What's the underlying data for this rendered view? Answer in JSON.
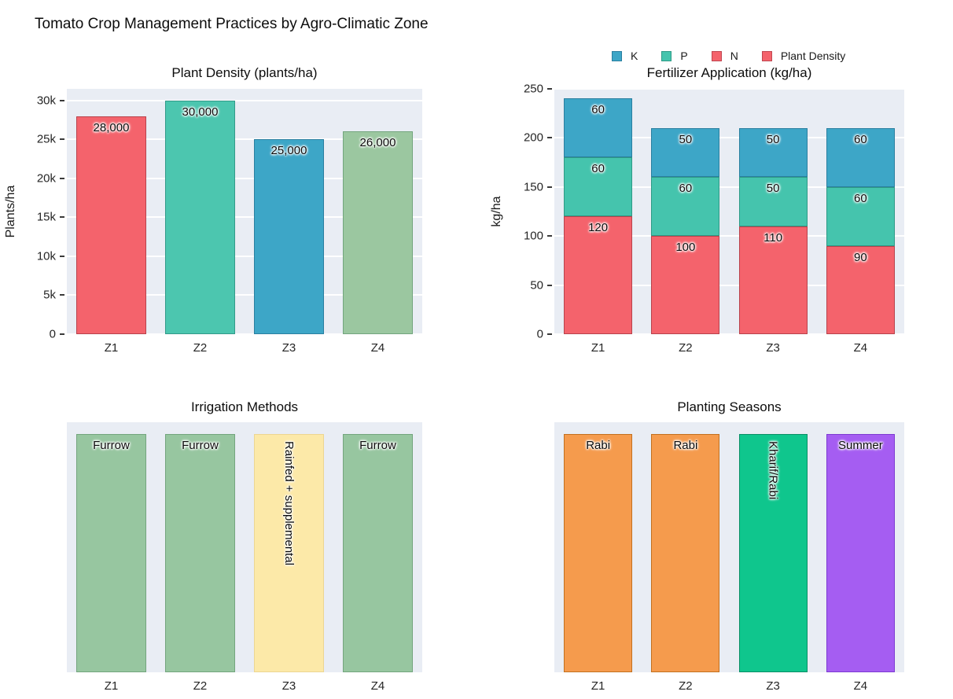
{
  "page": {
    "title": "Tomato Crop Management Practices by Agro-Climatic Zone"
  },
  "legend": {
    "position": "top-right",
    "items": [
      {
        "label": "K",
        "color": "#3da6c7",
        "border": "#2a7fa0"
      },
      {
        "label": "P",
        "color": "#45c4ad",
        "border": "#2e9a86"
      },
      {
        "label": "N",
        "color": "#f4636c",
        "border": "#c04650"
      },
      {
        "label": "Plant Density",
        "color": "#f4636c",
        "border": "#c04650"
      }
    ]
  },
  "chart_data": [
    {
      "type": "bar",
      "title": "Plant Density (plants/ha)",
      "xlabel": "",
      "ylabel": "Plants/ha",
      "categories": [
        "Z1",
        "Z2",
        "Z3",
        "Z4"
      ],
      "values": [
        28000,
        30000,
        25000,
        26000
      ],
      "bar_labels": [
        "28,000",
        "30,000",
        "25,000",
        "26,000"
      ],
      "label_rotated": [
        false,
        false,
        false,
        false
      ],
      "bar_colors": [
        "#f4636c",
        "#4cc6af",
        "#3da6c7",
        "#9bc7a0"
      ],
      "bar_borders": [
        "#b8434c",
        "#339a89",
        "#2a7fa0",
        "#73a57e"
      ],
      "ylim": [
        0,
        31500
      ],
      "grid": true,
      "yticks": [
        {
          "value": 0,
          "label": "0"
        },
        {
          "value": 5000,
          "label": "5k"
        },
        {
          "value": 10000,
          "label": "10k"
        },
        {
          "value": 15000,
          "label": "15k"
        },
        {
          "value": 20000,
          "label": "20k"
        },
        {
          "value": 25000,
          "label": "25k"
        },
        {
          "value": 30000,
          "label": "30k"
        }
      ]
    },
    {
      "type": "bar-stacked",
      "title": "Fertilizer Application (kg/ha)",
      "xlabel": "",
      "ylabel": "kg/ha",
      "categories": [
        "Z1",
        "Z2",
        "Z3",
        "Z4"
      ],
      "series": [
        {
          "name": "N",
          "color": "#f4636c",
          "border": "#b8434c",
          "values": [
            120,
            100,
            110,
            90
          ]
        },
        {
          "name": "P",
          "color": "#45c4ad",
          "border": "#2e9a86",
          "values": [
            60,
            60,
            50,
            60
          ]
        },
        {
          "name": "K",
          "color": "#3da6c7",
          "border": "#2a7fa0",
          "values": [
            60,
            50,
            50,
            60
          ]
        }
      ],
      "totals": [
        240,
        210,
        210,
        210
      ],
      "ylim": [
        0,
        250
      ],
      "grid": true,
      "yticks": [
        {
          "value": 0,
          "label": "0"
        },
        {
          "value": 50,
          "label": "50"
        },
        {
          "value": 100,
          "label": "100"
        },
        {
          "value": 150,
          "label": "150"
        },
        {
          "value": 200,
          "label": "200"
        },
        {
          "value": 250,
          "label": "250"
        }
      ]
    },
    {
      "type": "bar",
      "title": "Irrigation Methods",
      "xlabel": "",
      "ylabel": "",
      "categories": [
        "Z1",
        "Z2",
        "Z3",
        "Z4"
      ],
      "values": [
        1,
        1,
        1,
        1
      ],
      "bar_labels": [
        "Furrow",
        "Furrow",
        "Rainfed + supplemental",
        "Furrow"
      ],
      "label_rotated": [
        false,
        false,
        true,
        false
      ],
      "bar_colors": [
        "#97c6a0",
        "#97c6a0",
        "#fce9a8",
        "#97c6a0"
      ],
      "bar_borders": [
        "#74a57e",
        "#74a57e",
        "#ecd692",
        "#74a57e"
      ],
      "ylim": [
        0,
        1.048
      ],
      "grid": false,
      "yticks": []
    },
    {
      "type": "bar",
      "title": "Planting Seasons",
      "xlabel": "",
      "ylabel": "",
      "categories": [
        "Z1",
        "Z2",
        "Z3",
        "Z4"
      ],
      "values": [
        1,
        1,
        1,
        1
      ],
      "bar_labels": [
        "Rabi",
        "Rabi",
        "Kharif/Rabi",
        "Summer"
      ],
      "label_rotated": [
        false,
        false,
        true,
        false
      ],
      "bar_colors": [
        "#f59b4d",
        "#f59b4d",
        "#0fc68d",
        "#a55df2"
      ],
      "bar_borders": [
        "#c2701f",
        "#c2701f",
        "#0a8f66",
        "#7d3bd1"
      ],
      "ylim": [
        0,
        1.048
      ],
      "grid": false,
      "yticks": []
    }
  ]
}
